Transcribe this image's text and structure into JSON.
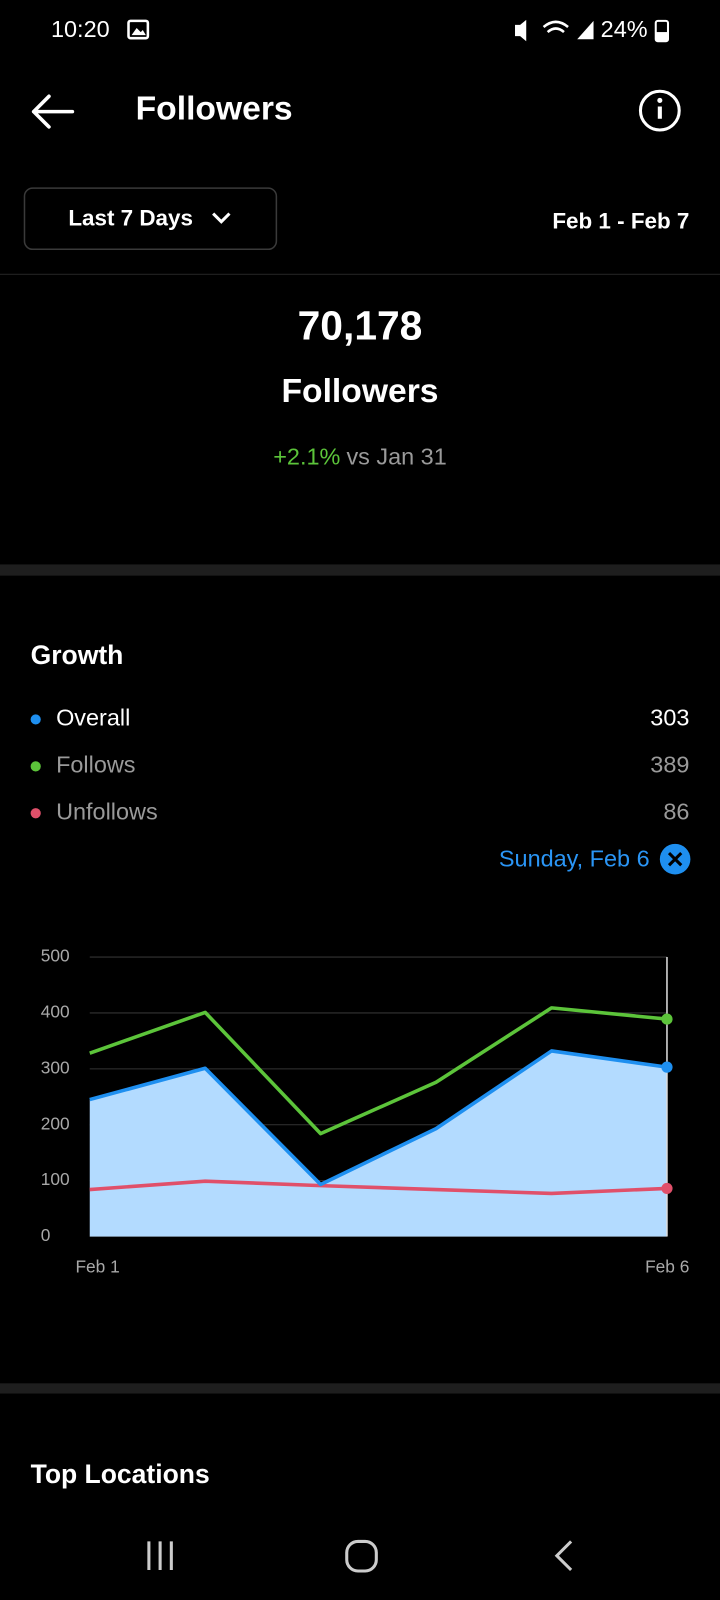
{
  "status_bar": {
    "time": "10:20",
    "battery": "24%"
  },
  "header": {
    "title": "Followers"
  },
  "filter": {
    "range": "Last 7 Days",
    "dates": "Feb 1 - Feb 7"
  },
  "summary": {
    "count": "70,178",
    "label": "Followers",
    "change": "+2.1%",
    "comparison": "vs Jan 31"
  },
  "growth": {
    "title": "Growth",
    "selected": "Sunday, Feb 6"
  },
  "chart_data": {
    "type": "line",
    "categories": [
      "Feb 1",
      null,
      null,
      null,
      null,
      "Feb 6"
    ],
    "series": [
      {
        "name": "Overall",
        "color": "#1e8ff0",
        "fill": "#b3dbff",
        "values": [
          245,
          301,
          93,
          193,
          332,
          303
        ]
      },
      {
        "name": "Follows",
        "color": "#5cc43a",
        "values": [
          328,
          401,
          184,
          276,
          409,
          389
        ]
      },
      {
        "name": "Unfollows",
        "color": "#e0506a",
        "values": [
          84,
          99,
          91,
          84,
          77,
          86
        ]
      }
    ],
    "ylim": [
      0,
      500
    ],
    "yticks": [
      0,
      100,
      200,
      300,
      400,
      500
    ],
    "grid": true
  },
  "top_locations": {
    "title": "Top Locations"
  }
}
